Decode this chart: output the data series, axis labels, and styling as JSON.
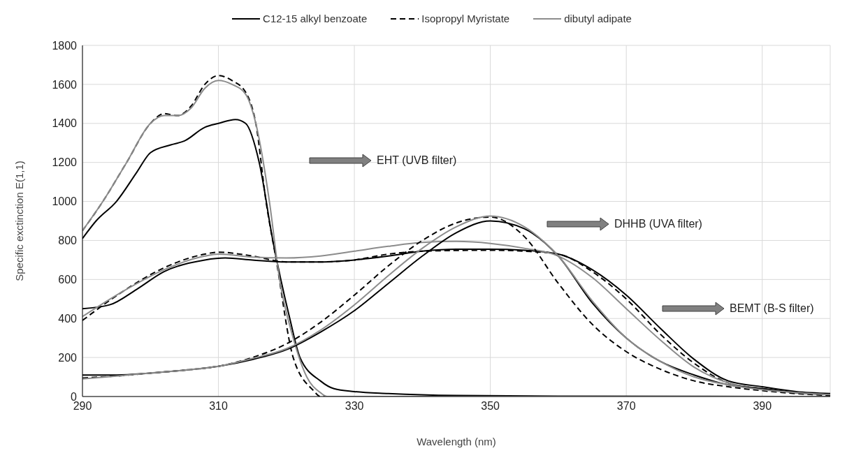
{
  "chart_data": {
    "type": "line",
    "xlabel": "Wavelength (nm)",
    "ylabel": "Specific exctinction E(1,1)",
    "xlim": [
      290,
      400
    ],
    "xticks": [
      290,
      310,
      330,
      350,
      370,
      390
    ],
    "ylim": [
      0,
      1800
    ],
    "yticks": [
      0,
      200,
      400,
      600,
      800,
      1000,
      1200,
      1400,
      1600,
      1800
    ],
    "grid": true,
    "legend": "top",
    "marker": "none",
    "annotations": [
      "EHT (UVB filter)",
      "DHHB (UVA filter)",
      "BEMT (B-S filter)"
    ],
    "series": [
      {
        "name": "C12-15 alkyl benzoate",
        "color": "#000000",
        "line_style": "solid",
        "x": [
          290,
          292,
          295,
          298,
          300,
          303,
          305,
          308,
          310,
          312.5,
          314,
          316,
          318,
          320.5,
          322,
          325,
          327,
          330,
          335,
          345,
          360,
          400
        ],
        "values": [
          810,
          900,
          1000,
          1150,
          1250,
          1290,
          1310,
          1380,
          1400,
          1420,
          1400,
          1200,
          800,
          400,
          200,
          80,
          40,
          25,
          15,
          5,
          2,
          0
        ]
      },
      {
        "name": "Isopropyl Myristate",
        "color": "#000000",
        "line_style": "dashed",
        "x": [
          290,
          293,
          296.5,
          300,
          302,
          304,
          306,
          308,
          310,
          312,
          314,
          315.5,
          317,
          318.5,
          321,
          324,
          325,
          400
        ],
        "values": [
          850,
          1000,
          1200,
          1400,
          1450,
          1440,
          1490,
          1600,
          1645,
          1620,
          1560,
          1400,
          1000,
          700,
          200,
          30,
          0,
          0
        ]
      },
      {
        "name": "dibutyl adipate",
        "color": "#8c8c8c",
        "line_style": "solid",
        "x": [
          290,
          293,
          296.5,
          300,
          302,
          304,
          306,
          308,
          310,
          312,
          314,
          315.5,
          317.5,
          319,
          321,
          323,
          325,
          326,
          400
        ],
        "values": [
          850,
          1000,
          1200,
          1400,
          1440,
          1440,
          1480,
          1580,
          1620,
          1600,
          1550,
          1400,
          1000,
          600,
          300,
          100,
          20,
          0,
          0
        ]
      },
      {
        "color": "#000000",
        "line_style": "solid",
        "x": [
          290,
          294,
          298,
          302,
          308,
          311,
          315,
          320,
          325,
          330,
          335,
          340,
          345,
          350,
          355,
          360,
          365,
          370,
          375,
          380,
          385,
          390,
          395,
          400
        ],
        "values": [
          450,
          470,
          550,
          640,
          700,
          710,
          700,
          690,
          690,
          700,
          720,
          745,
          755,
          755,
          750,
          730,
          650,
          520,
          350,
          190,
          80,
          50,
          25,
          15
        ]
      },
      {
        "color": "#000000",
        "line_style": "dashed",
        "x": [
          290,
          296,
          302,
          308,
          310,
          315,
          320,
          325,
          330,
          335,
          340,
          350,
          355,
          360,
          365,
          370,
          375,
          380,
          385,
          390,
          395,
          400
        ],
        "values": [
          390,
          540,
          660,
          730,
          740,
          720,
          690,
          690,
          700,
          730,
          745,
          750,
          745,
          730,
          640,
          500,
          320,
          170,
          70,
          40,
          20,
          10
        ]
      },
      {
        "color": "#8c8c8c",
        "line_style": "solid",
        "x": [
          290,
          296,
          302,
          308,
          310,
          315,
          320,
          325,
          330,
          335,
          340,
          345,
          350,
          355,
          360,
          365,
          370,
          375,
          380,
          385,
          390,
          395,
          400
        ],
        "values": [
          410,
          540,
          650,
          720,
          730,
          715,
          710,
          720,
          745,
          770,
          790,
          795,
          785,
          760,
          720,
          610,
          450,
          290,
          150,
          70,
          40,
          20,
          10
        ]
      },
      {
        "color": "#000000",
        "line_style": "solid",
        "x": [
          290,
          295,
          300,
          305,
          310,
          315,
          320,
          325,
          330,
          335,
          340,
          345,
          350,
          355,
          360,
          365,
          370,
          375,
          380,
          385,
          390,
          395,
          400
        ],
        "values": [
          110,
          110,
          120,
          135,
          155,
          190,
          240,
          330,
          440,
          580,
          720,
          840,
          900,
          860,
          720,
          480,
          300,
          180,
          110,
          60,
          40,
          20,
          10
        ]
      },
      {
        "color": "#000000",
        "line_style": "dashed",
        "x": [
          290,
          295,
          300,
          305,
          310,
          315,
          320,
          325,
          330,
          335,
          340,
          345,
          350,
          355,
          360,
          365,
          370,
          375,
          380,
          385,
          390,
          395,
          400
        ],
        "values": [
          95,
          105,
          120,
          135,
          155,
          200,
          270,
          380,
          520,
          670,
          800,
          890,
          920,
          820,
          580,
          370,
          230,
          140,
          80,
          50,
          30,
          15,
          5
        ]
      },
      {
        "color": "#8c8c8c",
        "line_style": "solid",
        "x": [
          290,
          295,
          300,
          305,
          310,
          315,
          320,
          325,
          330,
          335,
          340,
          345,
          350,
          355,
          360,
          365,
          370,
          375,
          380,
          385,
          390,
          395,
          400
        ],
        "values": [
          90,
          105,
          120,
          135,
          155,
          195,
          245,
          340,
          470,
          620,
          760,
          870,
          925,
          870,
          720,
          490,
          300,
          180,
          100,
          60,
          35,
          20,
          10
        ]
      }
    ]
  }
}
